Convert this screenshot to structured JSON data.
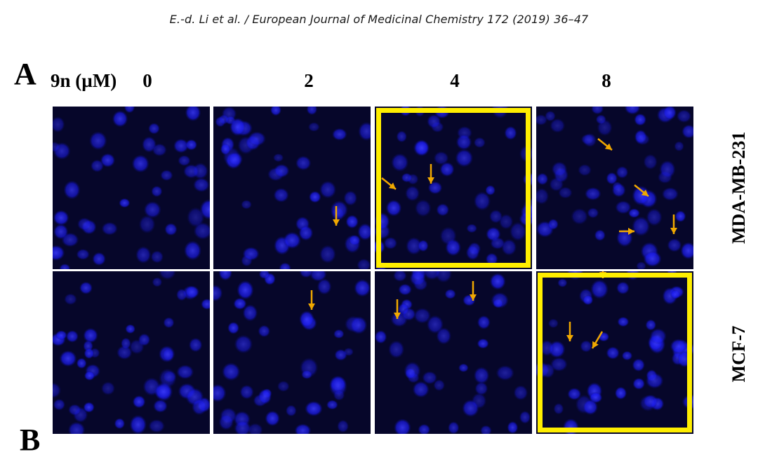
{
  "header": {
    "citation": "E.-d. Li et al. / European Journal of Medicinal Chemistry 172 (2019) 36–47"
  },
  "figure": {
    "panel_label": "A",
    "next_panel_label": "B",
    "concentration_label": "9n (µM)",
    "columns": [
      "0",
      "2",
      "4",
      "8"
    ],
    "rows": [
      "MDA-MB-231",
      "MCF-7"
    ],
    "stain_color": "#1a1aee",
    "arrow_color": "#f0a800",
    "highlight_color": "#ffee00",
    "arrow_counts": [
      [
        0,
        1,
        2,
        4
      ],
      [
        0,
        1,
        2,
        3
      ]
    ],
    "highlighted_panels": [
      {
        "row": 0,
        "col": 2
      },
      {
        "row": 1,
        "col": 3
      }
    ]
  }
}
